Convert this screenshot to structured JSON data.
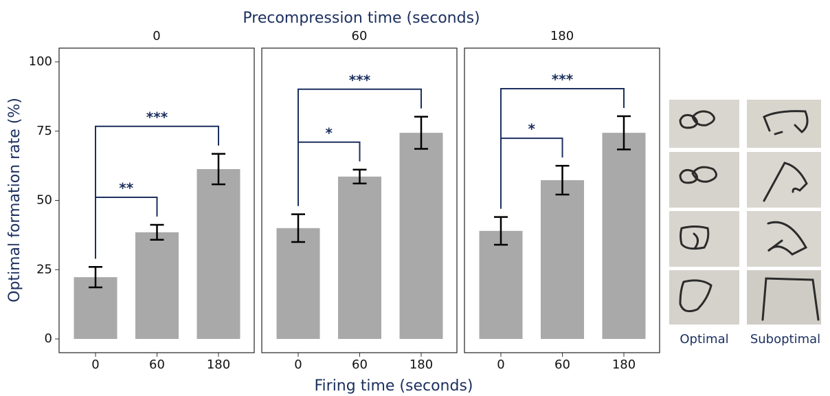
{
  "chart_data": {
    "type": "bar",
    "title": "Precompression time (seconds)",
    "x_label": "Firing time (seconds)",
    "y_label": "Optimal formation rate (%)",
    "ylim": [
      0,
      100
    ],
    "yticks": [
      0,
      25,
      50,
      75,
      100
    ],
    "color": "#a9a9a9",
    "bracket_color": "#1b2f5e",
    "panels": [
      {
        "title": "0",
        "categories": [
          "0",
          "60",
          "180"
        ],
        "values": [
          22.3,
          38.5,
          61.3
        ],
        "errors": [
          3.7,
          2.7,
          5.5
        ],
        "significance": [
          null,
          "**",
          "***"
        ]
      },
      {
        "title": "60",
        "categories": [
          "0",
          "60",
          "180"
        ],
        "values": [
          40,
          58.6,
          74.4
        ],
        "errors": [
          5,
          2.5,
          5.8
        ],
        "significance": [
          null,
          "*",
          "***"
        ]
      },
      {
        "title": "180",
        "categories": [
          "0",
          "60",
          "180"
        ],
        "values": [
          39,
          57.3,
          74.4
        ],
        "errors": [
          5,
          5.2,
          6
        ],
        "significance": [
          null,
          "*",
          "***"
        ]
      }
    ]
  },
  "photo_legend": {
    "labels": [
      "Optimal",
      "Suboptimal"
    ]
  }
}
